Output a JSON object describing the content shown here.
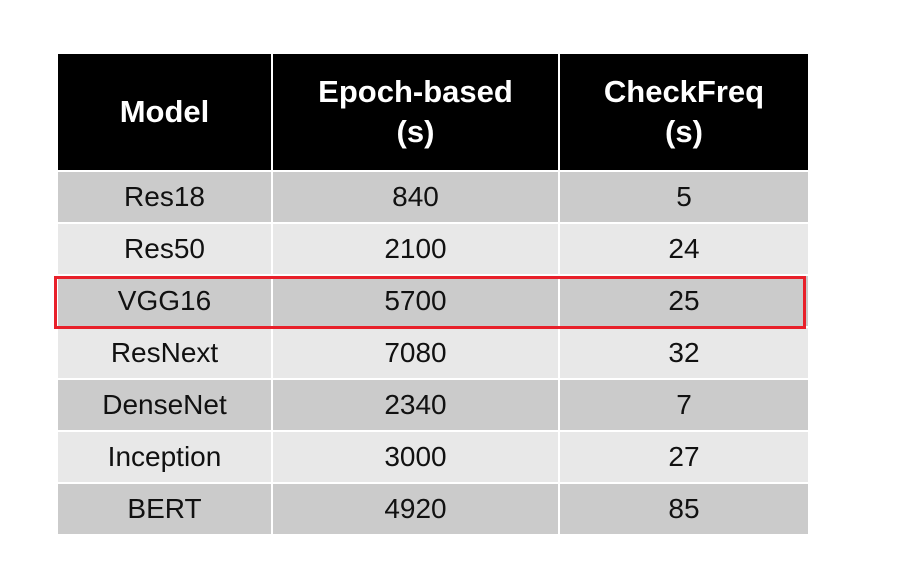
{
  "chart_data": {
    "type": "table",
    "columns": [
      {
        "line1": "Model",
        "line2": ""
      },
      {
        "line1": "Epoch-based",
        "line2": "(s)"
      },
      {
        "line1": "CheckFreq",
        "line2": "(s)"
      }
    ],
    "rows": [
      [
        "Res18",
        "840",
        "5"
      ],
      [
        "Res50",
        "2100",
        "24"
      ],
      [
        "VGG16",
        "5700",
        "25"
      ],
      [
        "ResNext",
        "7080",
        "32"
      ],
      [
        "DenseNet",
        "2340",
        "7"
      ],
      [
        "Inception",
        "3000",
        "27"
      ],
      [
        "BERT",
        "4920",
        "85"
      ]
    ],
    "highlighted_row": 2,
    "highlight_color": "#e8202a",
    "header_background": "#000000",
    "row_colors": [
      "#cbcbcb",
      "#e8e8e8"
    ]
  }
}
